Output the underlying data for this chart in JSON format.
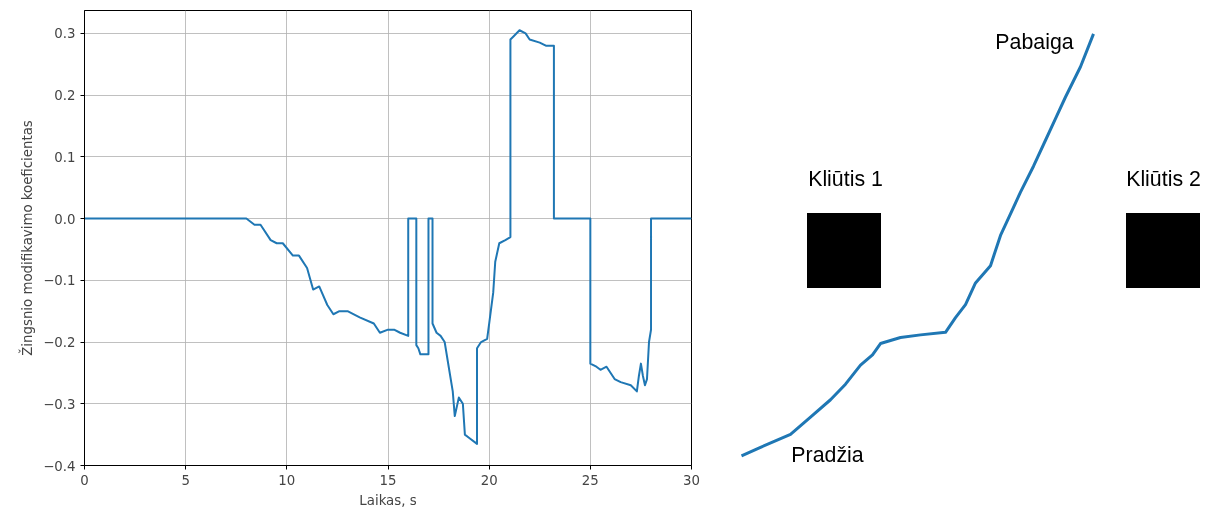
{
  "chart_data": [
    {
      "type": "line",
      "xlabel": "Laikas, s",
      "ylabel": "Žingsnio modifikavimo koeficientas",
      "x": [
        0,
        8.0,
        8.4,
        8.7,
        9.2,
        9.5,
        9.8,
        10.3,
        10.6,
        11.0,
        11.3,
        11.6,
        12.0,
        12.3,
        12.6,
        13.0,
        13.6,
        14.3,
        14.6,
        15.0,
        15.3,
        15.6,
        16.0,
        16.0,
        16.4,
        16.4,
        16.5,
        16.6,
        16.9,
        17.0,
        17.0,
        17.2,
        17.2,
        17.4,
        17.6,
        17.8,
        18.0,
        18.2,
        18.3,
        18.5,
        18.7,
        18.8,
        19.0,
        19.4,
        19.4,
        19.6,
        19.9,
        20.0,
        20.2,
        20.3,
        20.5,
        20.8,
        21.05,
        21.05,
        21.2,
        21.5,
        21.8,
        22.0,
        22.5,
        22.8,
        23.2,
        23.2,
        25.0,
        25.0,
        25.3,
        25.5,
        25.8,
        26.2,
        26.5,
        27.0,
        27.3,
        27.4,
        27.5,
        27.6,
        27.7,
        27.8,
        27.9,
        28.0,
        28.0,
        30
      ],
      "series": [
        {
          "color": "#1f77b4",
          "values": [
            0,
            0,
            -0.01,
            -0.01,
            -0.035,
            -0.04,
            -0.04,
            -0.06,
            -0.06,
            -0.08,
            -0.115,
            -0.11,
            -0.14,
            -0.155,
            -0.15,
            -0.15,
            -0.16,
            -0.17,
            -0.185,
            -0.18,
            -0.18,
            -0.185,
            -0.19,
            0,
            0,
            -0.205,
            -0.21,
            -0.22,
            -0.22,
            -0.22,
            0,
            0,
            -0.17,
            -0.185,
            -0.19,
            -0.2,
            -0.24,
            -0.28,
            -0.32,
            -0.29,
            -0.3,
            -0.35,
            -0.355,
            -0.365,
            -0.21,
            -0.2,
            -0.195,
            -0.17,
            -0.12,
            -0.07,
            -0.04,
            -0.035,
            -0.03,
            0.29,
            0.295,
            0.305,
            0.3,
            0.29,
            0.285,
            0.28,
            0.28,
            0,
            0,
            -0.235,
            -0.24,
            -0.245,
            -0.24,
            -0.26,
            -0.265,
            -0.27,
            -0.28,
            -0.255,
            -0.235,
            -0.255,
            -0.27,
            -0.26,
            -0.2,
            -0.18,
            0,
            0
          ]
        }
      ],
      "xlim": [
        0,
        30
      ],
      "xticks": [
        0,
        5,
        10,
        15,
        20,
        25,
        30
      ],
      "ylim": [
        -0.4,
        0.337
      ],
      "yticks": [
        {
          "value": -0.4,
          "label": "−0.4"
        },
        {
          "value": -0.3,
          "label": "−0.3"
        },
        {
          "value": -0.2,
          "label": "−0.2"
        },
        {
          "value": -0.1,
          "label": "−0.1"
        },
        {
          "value": 0,
          "label": "0.0"
        },
        {
          "value": 0.1,
          "label": "0.1"
        },
        {
          "value": 0.2,
          "label": "0.2"
        },
        {
          "value": 0.3,
          "label": "0.3"
        }
      ],
      "grid": true,
      "marker": "none",
      "line_style": "solid"
    },
    {
      "type": "other",
      "annotations": [
        "Pabaiga",
        "Kliūtis 1",
        "Kliūtis 2",
        "Pradžia"
      ]
    }
  ]
}
